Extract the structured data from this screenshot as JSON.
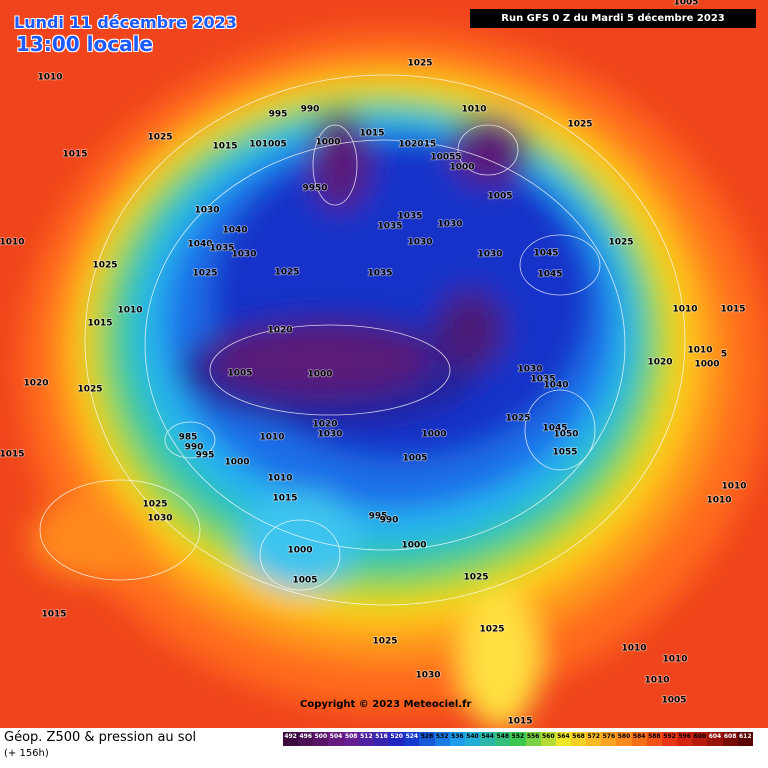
{
  "header": {
    "date": "Lundi 11 décembre 2023",
    "time": "13:00 locale",
    "run": "Run GFS 0 Z du Mardi 5 décembre 2023"
  },
  "copyright": "Copyright © 2023 Meteociel.fr",
  "legend": {
    "title": "Géop. Z500 & pression au sol",
    "subtitle": "(+ 156h)",
    "values": [
      492,
      496,
      500,
      504,
      508,
      512,
      516,
      520,
      524,
      528,
      532,
      536,
      540,
      544,
      548,
      552,
      556,
      560,
      564,
      568,
      572,
      576,
      580,
      584,
      588,
      592,
      596,
      600,
      604,
      608,
      612
    ]
  },
  "pressure_labels": [
    "1010",
    "1025",
    "1015",
    "1015",
    "1010",
    "995",
    "990",
    "1000",
    "101005",
    "9950",
    "1015",
    "1025",
    "1010",
    "1020",
    "15",
    "10055",
    "1000",
    "1005",
    "1025",
    "1030",
    "1040",
    "1040",
    "1035",
    "1030",
    "1025",
    "1025",
    "1025",
    "1035",
    "1035",
    "1030",
    "1030",
    "1035",
    "1030",
    "1045",
    "1045",
    "1025",
    "1010",
    "1015",
    "1020",
    "1005",
    "1000",
    "1020",
    "1025",
    "1030",
    "1035",
    "1040",
    "1025",
    "1045",
    "1050",
    "1055",
    "1010",
    "1015",
    "1010",
    "5",
    "1020",
    "1000",
    "985",
    "990",
    "995",
    "1000",
    "1010",
    "1030",
    "1020",
    "1000",
    "1005",
    "1010",
    "1015",
    "1015",
    "1025",
    "1030",
    "995",
    "990",
    "1000",
    "1000",
    "1005",
    "1025",
    "1025",
    "1025",
    "1030",
    "1015",
    "1010",
    "1010",
    "1010",
    "1005",
    "1015",
    "1010",
    "1010",
    "1005"
  ]
}
